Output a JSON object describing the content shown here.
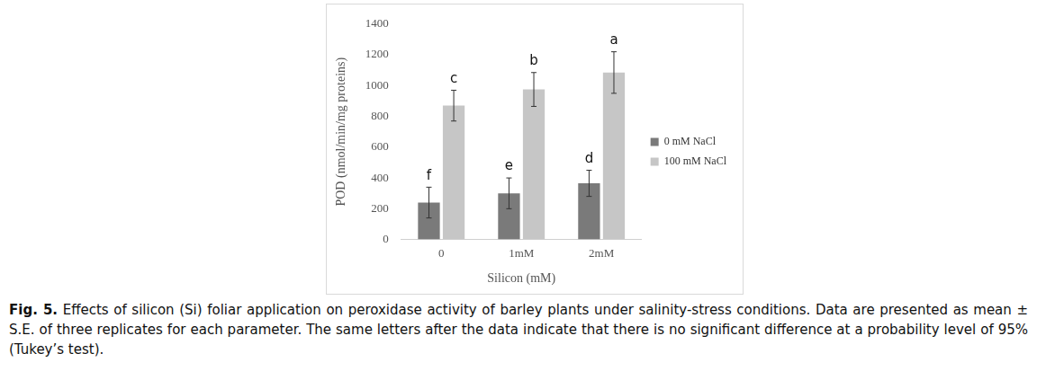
{
  "chart_data": {
    "type": "bar",
    "x_label": "Silicon (mM)",
    "y_label": "POD (nmol/min/mg proteins)",
    "categories": [
      "0",
      "1mM",
      "2mM"
    ],
    "series": [
      {
        "name": "0 mM NaCl",
        "color": "#7a7a7a",
        "values": [
          240,
          300,
          365
        ],
        "errors": [
          100,
          100,
          85
        ],
        "annotations": [
          "f",
          "e",
          "d"
        ]
      },
      {
        "name": "100 mM NaCl",
        "color": "#c6c6c6",
        "values": [
          870,
          975,
          1085
        ],
        "errors": [
          100,
          110,
          135
        ],
        "annotations": [
          "c",
          "b",
          "a"
        ]
      }
    ],
    "ylim": [
      0,
      1400
    ],
    "yticks": [
      0,
      200,
      400,
      600,
      800,
      1000,
      1200,
      1400
    ],
    "grid": false,
    "legend": "right",
    "caption": {
      "label": "Fig. 5.",
      "text": "Effects of silicon (Si) foliar application on peroxidase activity of barley plants under salinity-stress conditions. Data are presented as mean ± S.E. of three replicates for each parameter. The same letters after the data indicate that there is no significant difference at a probability level of 95% (Tukey’s test)."
    }
  }
}
